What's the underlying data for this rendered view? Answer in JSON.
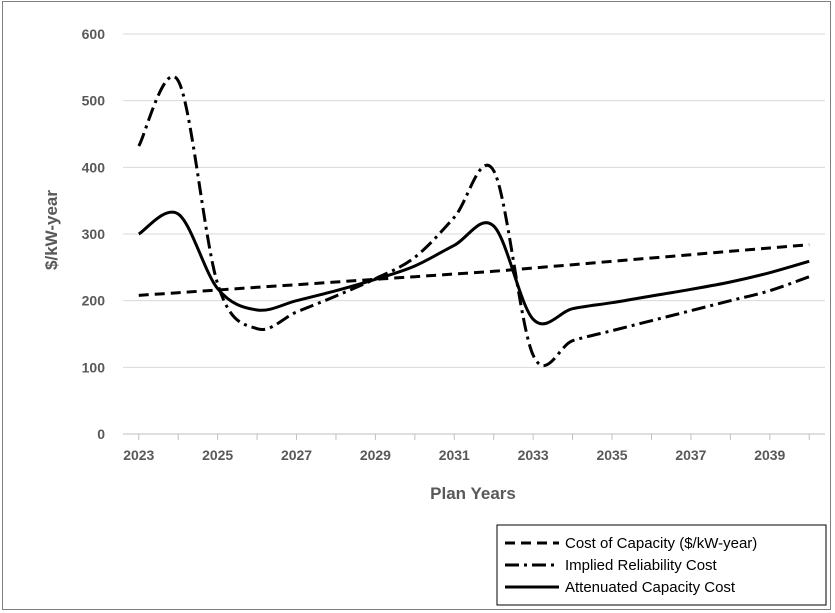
{
  "chart_data": {
    "type": "line",
    "title": "",
    "xlabel": "Plan Years",
    "ylabel": "$/kW-year",
    "xlim": [
      2022.6,
      2040.4
    ],
    "ylim": [
      0,
      600
    ],
    "x_ticks": [
      "2023",
      "2025",
      "2027",
      "2029",
      "2031",
      "2033",
      "2035",
      "2037",
      "2039"
    ],
    "y_ticks": [
      "0",
      "100",
      "200",
      "300",
      "400",
      "500",
      "600"
    ],
    "grid": "horizontal",
    "legend_position": "bottom-right",
    "series": [
      {
        "name": "Cost of Capacity ($/kW-year)",
        "style": "dashed",
        "x": [
          2023,
          2024,
          2025,
          2026,
          2027,
          2028,
          2029,
          2030,
          2031,
          2032,
          2033,
          2034,
          2035,
          2036,
          2037,
          2038,
          2039,
          2040
        ],
        "y": [
          208,
          212,
          216,
          220,
          224,
          228,
          232,
          236,
          240,
          244,
          249,
          254,
          259,
          264,
          269,
          274,
          279,
          284
        ]
      },
      {
        "name": "Implied Reliability Cost",
        "style": "dash-dot",
        "x": [
          2023,
          2024,
          2025,
          2026,
          2027,
          2028,
          2029,
          2030,
          2031,
          2032,
          2033,
          2034,
          2035,
          2036,
          2037,
          2038,
          2039,
          2040
        ],
        "y": [
          432,
          530,
          225,
          158,
          183,
          207,
          233,
          265,
          325,
          395,
          118,
          140,
          155,
          170,
          185,
          200,
          215,
          236
        ]
      },
      {
        "name": "Attenuated Capacity Cost",
        "style": "solid",
        "x": [
          2023,
          2024,
          2025,
          2026,
          2027,
          2028,
          2029,
          2030,
          2031,
          2032,
          2033,
          2034,
          2035,
          2036,
          2037,
          2038,
          2039,
          2040
        ],
        "y": [
          300,
          330,
          218,
          186,
          200,
          215,
          232,
          252,
          283,
          312,
          172,
          188,
          197,
          207,
          217,
          228,
          242,
          259
        ]
      }
    ]
  }
}
